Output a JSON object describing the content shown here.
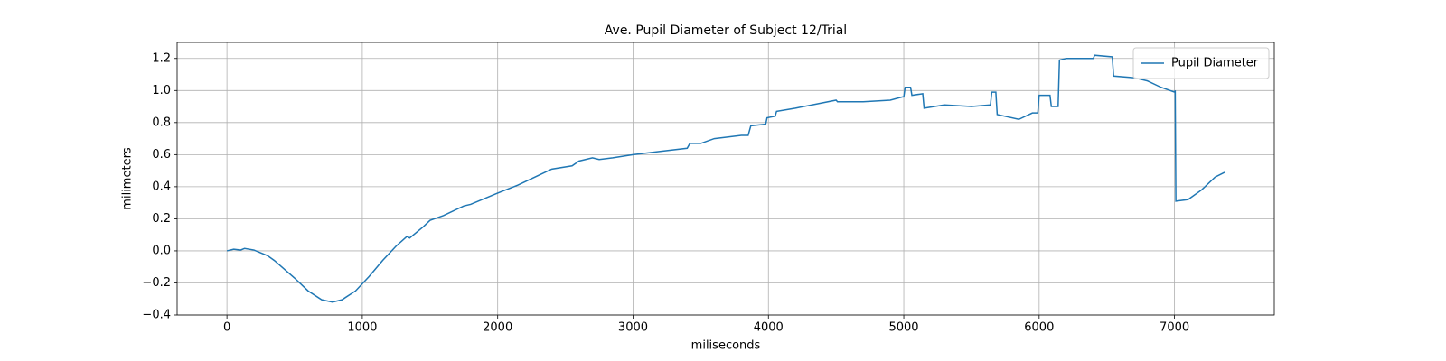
{
  "chart_data": {
    "type": "line",
    "title": "Ave. Pupil Diameter of Subject 12/Trial",
    "xlabel": "miliseconds",
    "ylabel": "milimeters",
    "legend": "upper right",
    "grid": true,
    "xlim": [
      -368,
      7737
    ],
    "ylim": [
      -0.4,
      1.3
    ],
    "xticks": [
      0,
      1000,
      2000,
      3000,
      4000,
      5000,
      6000,
      7000
    ],
    "yticks": [
      {
        "value": -0.4,
        "label": "−0.4"
      },
      {
        "value": -0.2,
        "label": "−0.2"
      },
      {
        "value": 0,
        "label": "0.0"
      },
      0.2,
      0.4,
      0.6,
      0.8,
      {
        "value": 1,
        "label": "1.0"
      },
      1.2
    ],
    "x": [
      0,
      50,
      100,
      130,
      200,
      300,
      350,
      500,
      600,
      700,
      780,
      850,
      950,
      1050,
      1150,
      1250,
      1330,
      1350,
      1450,
      1500,
      1600,
      1750,
      1800,
      2000,
      2150,
      2300,
      2400,
      2550,
      2600,
      2700,
      2750,
      2850,
      3000,
      3200,
      3400,
      3420,
      3500,
      3600,
      3800,
      3850,
      3870,
      3980,
      3990,
      4050,
      4060,
      4200,
      4500,
      4510,
      4700,
      4900,
      4990,
      5000,
      5010,
      5050,
      5060,
      5140,
      5150,
      5300,
      5500,
      5640,
      5650,
      5680,
      5690,
      5850,
      5950,
      5990,
      6000,
      6080,
      6090,
      6140,
      6150,
      6200,
      6400,
      6410,
      6540,
      6550,
      6700,
      6800,
      6900,
      7000,
      7005,
      7010,
      7100,
      7200,
      7300,
      7370
    ],
    "series": [
      {
        "name": "Pupil Diameter",
        "color": "#1f77b4",
        "values": [
          0,
          0.01,
          0.005,
          0.015,
          0.005,
          -0.03,
          -0.06,
          -0.17,
          -0.25,
          -0.305,
          -0.32,
          -0.305,
          -0.25,
          -0.16,
          -0.06,
          0.03,
          0.09,
          0.08,
          0.15,
          0.19,
          0.22,
          0.28,
          0.29,
          0.36,
          0.41,
          0.47,
          0.51,
          0.53,
          0.56,
          0.58,
          0.57,
          0.58,
          0.6,
          0.62,
          0.64,
          0.67,
          0.67,
          0.7,
          0.72,
          0.72,
          0.78,
          0.79,
          0.83,
          0.84,
          0.87,
          0.89,
          0.94,
          0.93,
          0.93,
          0.94,
          0.96,
          0.96,
          1.02,
          1.02,
          0.97,
          0.98,
          0.89,
          0.91,
          0.9,
          0.91,
          0.99,
          0.99,
          0.85,
          0.82,
          0.86,
          0.86,
          0.97,
          0.97,
          0.9,
          0.9,
          1.19,
          1.2,
          1.2,
          1.22,
          1.21,
          1.09,
          1.08,
          1.06,
          1.02,
          0.99,
          1.0,
          0.31,
          0.32,
          0.38,
          0.46,
          0.49
        ]
      }
    ]
  }
}
